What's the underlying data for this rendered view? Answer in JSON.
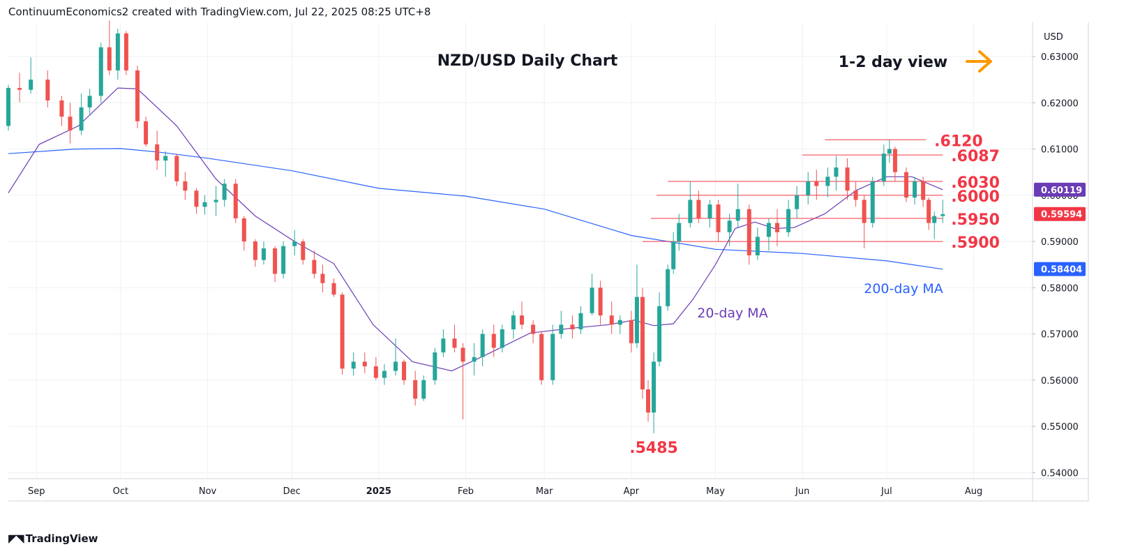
{
  "header": {
    "attribution": "ContinuumEconomics2 created with TradingView.com, Jul 22, 2025 08:25 UTC+8"
  },
  "footer": {
    "logo_text": "TradingView",
    "logo_icon": "tradingview-logo-icon"
  },
  "colors": {
    "up": "#26a69a",
    "down": "#ef5350",
    "ma20": "#6a3cb5",
    "ma200": "#2962ff",
    "level": "#f23645",
    "arrow": "#ff9800",
    "grid": "#eef0f3",
    "text": "#131722"
  },
  "chart_data": {
    "type": "candlestick",
    "title": "NZD/USD Daily Chart",
    "view_label": "1-2 day view",
    "view_icon": "orange-right-arrow-icon",
    "currency": "USD",
    "ylim": [
      0.5387,
      0.6374
    ],
    "y_ticks": [
      "0.63000",
      "0.62000",
      "0.61000",
      "0.60000",
      "0.59000",
      "0.58000",
      "0.57000",
      "0.56000",
      "0.55000",
      "0.54000"
    ],
    "y_tick_values": [
      0.63,
      0.62,
      0.61,
      0.6,
      0.59,
      0.58,
      0.57,
      0.56,
      0.55,
      0.54
    ],
    "x_ticks": [
      {
        "label": "Sep",
        "date": "2024-09-01"
      },
      {
        "label": "Oct",
        "date": "2024-10-01"
      },
      {
        "label": "Nov",
        "date": "2024-11-01"
      },
      {
        "label": "Dec",
        "date": "2024-12-01"
      },
      {
        "label": "2025",
        "date": "2025-01-01",
        "bold": true
      },
      {
        "label": "Feb",
        "date": "2025-02-01"
      },
      {
        "label": "Mar",
        "date": "2025-03-01"
      },
      {
        "label": "Apr",
        "date": "2025-04-01"
      },
      {
        "label": "May",
        "date": "2025-05-01"
      },
      {
        "label": "Jun",
        "date": "2025-06-01"
      },
      {
        "label": "Jul",
        "date": "2025-07-01"
      },
      {
        "label": "Aug",
        "date": "2025-08-01"
      }
    ],
    "x_range": [
      "2024-08-22",
      "2025-08-22"
    ],
    "price_badges": [
      {
        "label": "0.60119",
        "value": 0.60119,
        "color": "#6a3cb5"
      },
      {
        "label": "0.59594",
        "value": 0.59594,
        "color": "#f23645"
      },
      {
        "label": "0.58404",
        "value": 0.58404,
        "color": "#2962ff"
      }
    ],
    "levels": [
      {
        "label": ".6120",
        "value": 0.612,
        "from": "2025-06-09",
        "to": "2025-07-15"
      },
      {
        "label": ".6087",
        "value": 0.6087,
        "from": "2025-06-01",
        "to": "2025-07-21"
      },
      {
        "label": ".6030",
        "value": 0.603,
        "from": "2025-04-14",
        "to": "2025-07-21"
      },
      {
        "label": ".6000",
        "value": 0.6,
        "from": "2025-04-10",
        "to": "2025-07-21"
      },
      {
        "label": ".5950",
        "value": 0.595,
        "from": "2025-04-08",
        "to": "2025-07-21"
      },
      {
        "label": ".5900",
        "value": 0.59,
        "from": "2025-04-05",
        "to": "2025-07-21"
      }
    ],
    "low_label": {
      "label": ".5485",
      "value": 0.5485,
      "date": "2025-04-09"
    },
    "ma_labels": {
      "ma20": "20-day MA",
      "ma200": "200-day MA"
    },
    "ma20_series": [
      [
        "2024-08-22",
        0.6005
      ],
      [
        "2024-09-02",
        0.611
      ],
      [
        "2024-09-16",
        0.615
      ],
      [
        "2024-09-30",
        0.6232
      ],
      [
        "2024-10-07",
        0.623
      ],
      [
        "2024-10-21",
        0.615
      ],
      [
        "2024-11-04",
        0.6035
      ],
      [
        "2024-11-18",
        0.5955
      ],
      [
        "2024-12-02",
        0.59
      ],
      [
        "2024-12-16",
        0.5852
      ],
      [
        "2024-12-30",
        0.572
      ],
      [
        "2025-01-13",
        0.564
      ],
      [
        "2025-01-27",
        0.562
      ],
      [
        "2025-02-10",
        0.566
      ],
      [
        "2025-02-24",
        0.5702
      ],
      [
        "2025-03-10",
        0.5712
      ],
      [
        "2025-03-24",
        0.572
      ],
      [
        "2025-04-02",
        0.573
      ],
      [
        "2025-04-09",
        0.5718
      ],
      [
        "2025-04-16",
        0.5722
      ],
      [
        "2025-04-23",
        0.5775
      ],
      [
        "2025-05-01",
        0.585
      ],
      [
        "2025-05-08",
        0.5928
      ],
      [
        "2025-05-15",
        0.5942
      ],
      [
        "2025-05-22",
        0.5928
      ],
      [
        "2025-05-29",
        0.593
      ],
      [
        "2025-06-09",
        0.596
      ],
      [
        "2025-06-20",
        0.601
      ],
      [
        "2025-07-01",
        0.604
      ],
      [
        "2025-07-10",
        0.604
      ],
      [
        "2025-07-21",
        0.6012
      ]
    ],
    "ma200_series": [
      [
        "2024-08-22",
        0.609
      ],
      [
        "2024-09-15",
        0.61
      ],
      [
        "2024-10-01",
        0.6101
      ],
      [
        "2024-10-15",
        0.6093
      ],
      [
        "2024-11-01",
        0.608
      ],
      [
        "2024-12-01",
        0.6053
      ],
      [
        "2025-01-01",
        0.6015
      ],
      [
        "2025-02-01",
        0.5998
      ],
      [
        "2025-03-01",
        0.597
      ],
      [
        "2025-04-01",
        0.5913
      ],
      [
        "2025-05-01",
        0.5883
      ],
      [
        "2025-06-01",
        0.5874
      ],
      [
        "2025-07-01",
        0.5858
      ],
      [
        "2025-07-21",
        0.584
      ]
    ],
    "candles": [
      [
        "2024-08-22",
        0.615,
        0.6239,
        0.614,
        0.6232
      ],
      [
        "2024-08-26",
        0.6232,
        0.6265,
        0.6201,
        0.6228
      ],
      [
        "2024-08-30",
        0.6228,
        0.6298,
        0.622,
        0.625
      ],
      [
        "2024-09-05",
        0.625,
        0.627,
        0.619,
        0.6205
      ],
      [
        "2024-09-10",
        0.6205,
        0.6215,
        0.615,
        0.617
      ],
      [
        "2024-09-13",
        0.617,
        0.62,
        0.6112,
        0.614
      ],
      [
        "2024-09-17",
        0.614,
        0.622,
        0.613,
        0.619
      ],
      [
        "2024-09-20",
        0.619,
        0.623,
        0.6175,
        0.6215
      ],
      [
        "2024-09-24",
        0.6215,
        0.633,
        0.62,
        0.632
      ],
      [
        "2024-09-27",
        0.632,
        0.6378,
        0.626,
        0.627
      ],
      [
        "2024-09-30",
        0.627,
        0.636,
        0.625,
        0.635
      ],
      [
        "2024-10-03",
        0.635,
        0.6355,
        0.626,
        0.627
      ],
      [
        "2024-10-07",
        0.627,
        0.628,
        0.6145,
        0.616
      ],
      [
        "2024-10-10",
        0.616,
        0.617,
        0.6105,
        0.611
      ],
      [
        "2024-10-14",
        0.611,
        0.614,
        0.6055,
        0.6075
      ],
      [
        "2024-10-17",
        0.6075,
        0.6095,
        0.604,
        0.6085
      ],
      [
        "2024-10-21",
        0.6085,
        0.609,
        0.602,
        0.603
      ],
      [
        "2024-10-24",
        0.603,
        0.605,
        0.599,
        0.601
      ],
      [
        "2024-10-28",
        0.601,
        0.6015,
        0.596,
        0.5975
      ],
      [
        "2024-10-31",
        0.5975,
        0.6,
        0.5958,
        0.5985
      ],
      [
        "2024-11-04",
        0.5985,
        0.602,
        0.5955,
        0.599
      ],
      [
        "2024-11-07",
        0.599,
        0.6035,
        0.5975,
        0.6025
      ],
      [
        "2024-11-11",
        0.6025,
        0.6035,
        0.594,
        0.595
      ],
      [
        "2024-11-14",
        0.595,
        0.5955,
        0.588,
        0.59
      ],
      [
        "2024-11-18",
        0.59,
        0.5905,
        0.5845,
        0.586
      ],
      [
        "2024-11-21",
        0.586,
        0.59,
        0.585,
        0.5885
      ],
      [
        "2024-11-25",
        0.5885,
        0.589,
        0.5812,
        0.583
      ],
      [
        "2024-11-28",
        0.583,
        0.59,
        0.582,
        0.589
      ],
      [
        "2024-12-02",
        0.589,
        0.5925,
        0.587,
        0.59
      ],
      [
        "2024-12-05",
        0.59,
        0.5905,
        0.585,
        0.586
      ],
      [
        "2024-12-09",
        0.586,
        0.588,
        0.582,
        0.583
      ],
      [
        "2024-12-12",
        0.583,
        0.585,
        0.579,
        0.581
      ],
      [
        "2024-12-16",
        0.581,
        0.582,
        0.578,
        0.5785
      ],
      [
        "2024-12-19",
        0.5785,
        0.579,
        0.5612,
        0.5625
      ],
      [
        "2024-12-23",
        0.5625,
        0.566,
        0.561,
        0.564
      ],
      [
        "2024-12-27",
        0.564,
        0.566,
        0.5615,
        0.563
      ],
      [
        "2024-12-31",
        0.563,
        0.565,
        0.56,
        0.5605
      ],
      [
        "2025-01-03",
        0.5605,
        0.5635,
        0.559,
        0.562
      ],
      [
        "2025-01-07",
        0.562,
        0.569,
        0.561,
        0.564
      ],
      [
        "2025-01-10",
        0.564,
        0.5645,
        0.559,
        0.56
      ],
      [
        "2025-01-14",
        0.56,
        0.562,
        0.5545,
        0.556
      ],
      [
        "2025-01-17",
        0.556,
        0.561,
        0.5555,
        0.56
      ],
      [
        "2025-01-21",
        0.56,
        0.567,
        0.559,
        0.566
      ],
      [
        "2025-01-24",
        0.566,
        0.571,
        0.565,
        0.569
      ],
      [
        "2025-01-28",
        0.569,
        0.572,
        0.566,
        0.567
      ],
      [
        "2025-01-31",
        0.567,
        0.568,
        0.5515,
        0.564
      ],
      [
        "2025-02-04",
        0.564,
        0.568,
        0.561,
        0.565
      ],
      [
        "2025-02-07",
        0.565,
        0.571,
        0.563,
        0.57
      ],
      [
        "2025-02-11",
        0.57,
        0.572,
        0.565,
        0.567
      ],
      [
        "2025-02-14",
        0.567,
        0.572,
        0.566,
        0.571
      ],
      [
        "2025-02-18",
        0.571,
        0.575,
        0.569,
        0.574
      ],
      [
        "2025-02-21",
        0.574,
        0.577,
        0.571,
        0.572
      ],
      [
        "2025-02-25",
        0.572,
        0.573,
        0.568,
        0.57
      ],
      [
        "2025-02-28",
        0.57,
        0.5705,
        0.559,
        0.56
      ],
      [
        "2025-03-04",
        0.56,
        0.572,
        0.559,
        0.57
      ],
      [
        "2025-03-07",
        0.57,
        0.575,
        0.569,
        0.572
      ],
      [
        "2025-03-11",
        0.572,
        0.574,
        0.569,
        0.571
      ],
      [
        "2025-03-14",
        0.571,
        0.576,
        0.57,
        0.5745
      ],
      [
        "2025-03-18",
        0.5745,
        0.583,
        0.574,
        0.58
      ],
      [
        "2025-03-21",
        0.58,
        0.5815,
        0.572,
        0.574
      ],
      [
        "2025-03-25",
        0.574,
        0.577,
        0.57,
        0.572
      ],
      [
        "2025-03-28",
        0.572,
        0.574,
        0.57,
        0.573
      ],
      [
        "2025-04-01",
        0.573,
        0.575,
        0.566,
        0.568
      ],
      [
        "2025-04-03",
        0.568,
        0.585,
        0.567,
        0.578
      ],
      [
        "2025-04-05",
        0.578,
        0.58,
        0.556,
        0.558
      ],
      [
        "2025-04-07",
        0.558,
        0.56,
        0.551,
        0.553
      ],
      [
        "2025-04-09",
        0.553,
        0.566,
        0.5485,
        0.564
      ],
      [
        "2025-04-11",
        0.564,
        0.579,
        0.563,
        0.576
      ],
      [
        "2025-04-14",
        0.576,
        0.585,
        0.575,
        0.584
      ],
      [
        "2025-04-16",
        0.584,
        0.592,
        0.583,
        0.59
      ],
      [
        "2025-04-18",
        0.59,
        0.596,
        0.588,
        0.594
      ],
      [
        "2025-04-22",
        0.594,
        0.603,
        0.593,
        0.599
      ],
      [
        "2025-04-25",
        0.599,
        0.601,
        0.594,
        0.595
      ],
      [
        "2025-04-29",
        0.595,
        0.599,
        0.593,
        0.598
      ],
      [
        "2025-05-02",
        0.598,
        0.599,
        0.59,
        0.592
      ],
      [
        "2025-05-06",
        0.592,
        0.596,
        0.589,
        0.5945
      ],
      [
        "2025-05-09",
        0.5945,
        0.6025,
        0.593,
        0.597
      ],
      [
        "2025-05-13",
        0.597,
        0.598,
        0.585,
        0.587
      ],
      [
        "2025-05-16",
        0.587,
        0.593,
        0.586,
        0.591
      ],
      [
        "2025-05-20",
        0.591,
        0.595,
        0.588,
        0.594
      ],
      [
        "2025-05-23",
        0.594,
        0.597,
        0.589,
        0.592
      ],
      [
        "2025-05-27",
        0.592,
        0.599,
        0.591,
        0.597
      ],
      [
        "2025-05-30",
        0.597,
        0.602,
        0.595,
        0.6
      ],
      [
        "2025-06-03",
        0.6,
        0.605,
        0.598,
        0.603
      ],
      [
        "2025-06-06",
        0.603,
        0.6055,
        0.599,
        0.602
      ],
      [
        "2025-06-10",
        0.602,
        0.606,
        0.5995,
        0.604
      ],
      [
        "2025-06-13",
        0.604,
        0.6085,
        0.601,
        0.606
      ],
      [
        "2025-06-17",
        0.606,
        0.608,
        0.599,
        0.601
      ],
      [
        "2025-06-20",
        0.601,
        0.603,
        0.5975,
        0.599
      ],
      [
        "2025-06-23",
        0.599,
        0.6,
        0.5885,
        0.594
      ],
      [
        "2025-06-26",
        0.594,
        0.604,
        0.593,
        0.603
      ],
      [
        "2025-06-30",
        0.603,
        0.611,
        0.602,
        0.609
      ],
      [
        "2025-07-02",
        0.609,
        0.612,
        0.607,
        0.61
      ],
      [
        "2025-07-04",
        0.61,
        0.6105,
        0.603,
        0.605
      ],
      [
        "2025-07-08",
        0.605,
        0.606,
        0.5985,
        0.5995
      ],
      [
        "2025-07-11",
        0.5995,
        0.604,
        0.598,
        0.603
      ],
      [
        "2025-07-14",
        0.603,
        0.604,
        0.5975,
        0.599
      ],
      [
        "2025-07-16",
        0.599,
        0.5995,
        0.5925,
        0.594
      ],
      [
        "2025-07-18",
        0.594,
        0.5965,
        0.5905,
        0.5955
      ],
      [
        "2025-07-21",
        0.5955,
        0.599,
        0.594,
        0.5959
      ]
    ]
  }
}
